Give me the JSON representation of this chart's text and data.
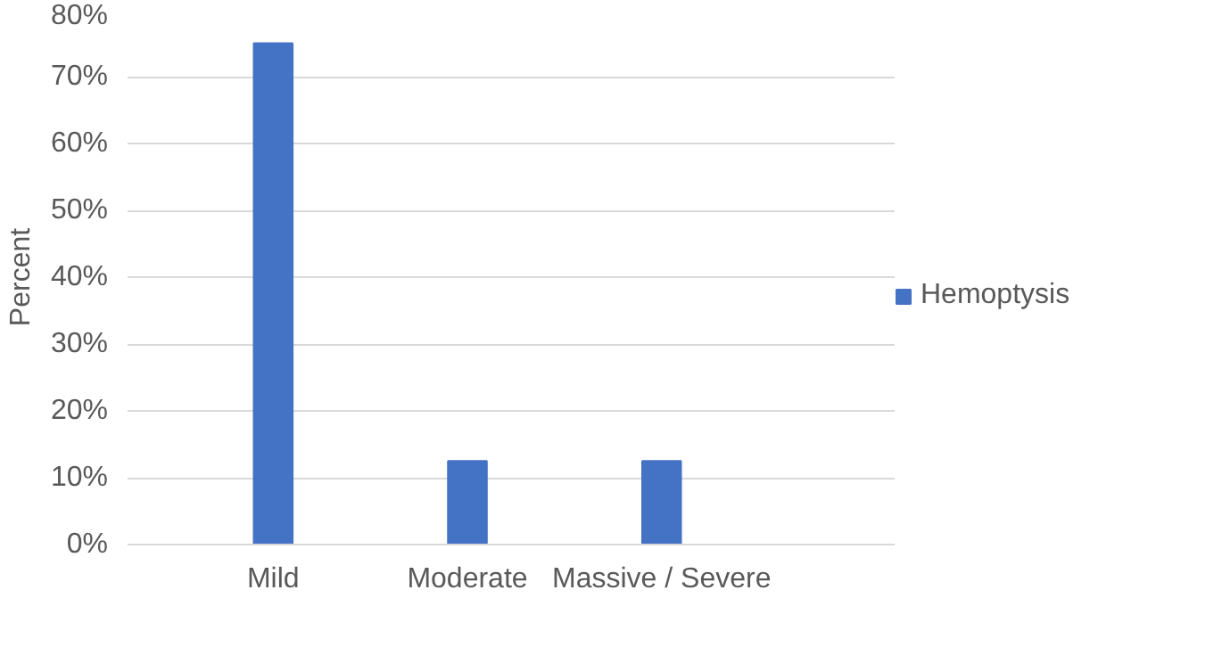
{
  "chart_data": {
    "type": "bar",
    "ylabel": "Percent",
    "categories": [
      "Mild",
      "Moderate",
      "Massive / Severe"
    ],
    "series": [
      {
        "name": "Hemoptysis",
        "color": "#4472c4",
        "values": [
          75,
          12.5,
          12.5
        ]
      }
    ],
    "ylim": [
      0,
      80
    ],
    "yticks": [
      {
        "value": 0,
        "label": "0%"
      },
      {
        "value": 10,
        "label": "10%"
      },
      {
        "value": 20,
        "label": "20%"
      },
      {
        "value": 30,
        "label": "30%"
      },
      {
        "value": 40,
        "label": "40%"
      },
      {
        "value": 50,
        "label": "50%"
      },
      {
        "value": 60,
        "label": "60%"
      },
      {
        "value": 70,
        "label": "70%"
      },
      {
        "value": 80,
        "label": "80%"
      }
    ],
    "grid": "y",
    "legend": "right"
  }
}
